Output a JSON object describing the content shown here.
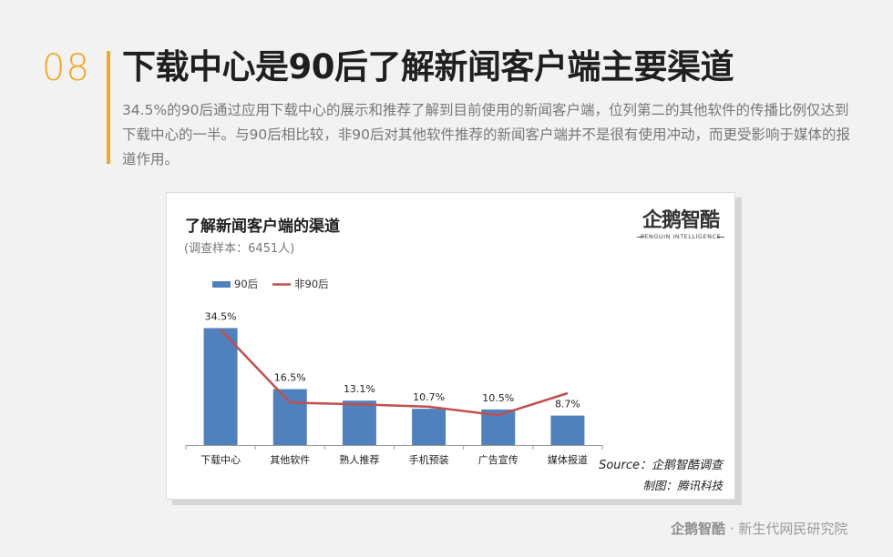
{
  "page": {
    "number": "08",
    "headline": "下载中心是90后了解新闻客户端主要渠道",
    "description": "34.5%的90后通过应用下载中心的展示和推荐了解到目前使用的新闻客户端，位列第二的其他软件的传播比例仅达到下载中心的一半。与90后相比较，非90后对其他软件推荐的新闻客户端并不是很有使用冲动，而更受影响于媒体的报道作用。",
    "accent_color": "#f5a623"
  },
  "card": {
    "brand_name": "企鹅智酷",
    "brand_tagline": "PENGUIN INTELLIGENCE",
    "source": "Source：企鹅智酷调查",
    "credit": "制图：腾讯科技"
  },
  "chart_data": {
    "type": "bar",
    "title": "了解新闻客户端的渠道",
    "subtitle": "(调查样本：6451人)",
    "categories": [
      "下载中心",
      "其他软件",
      "熟人推荐",
      "手机预装",
      "广告宣传",
      "媒体报道"
    ],
    "series": [
      {
        "name": "90后",
        "type": "bar",
        "color": "#4f81bd",
        "values": [
          34.5,
          16.5,
          13.1,
          10.7,
          10.5,
          8.7
        ],
        "labels": [
          "34.5%",
          "16.5%",
          "13.1%",
          "10.7%",
          "10.5%",
          "8.7%"
        ]
      },
      {
        "name": "非90后",
        "type": "line",
        "color": "#c0504d",
        "values": [
          34.0,
          12.5,
          12.0,
          11.3,
          8.8,
          15.3
        ]
      }
    ],
    "ylim": [
      0,
      40
    ],
    "grid": false,
    "legend": "top-left",
    "xlabel": "",
    "ylabel": ""
  },
  "footer": {
    "logo": "企鹅智酷",
    "text": "· 新生代网民研究院"
  }
}
